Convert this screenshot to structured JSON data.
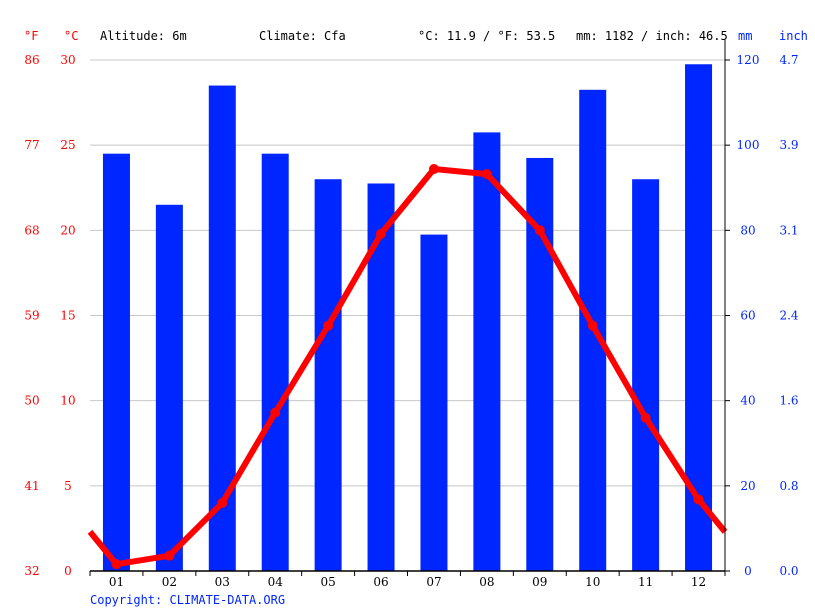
{
  "header": {
    "unit_f": "°F",
    "unit_c": "°C",
    "altitude": "Altitude: 6m",
    "climate": "Climate: Cfa",
    "avg_temp": "°C: 11.9 / °F: 53.5",
    "precip_total": "mm: 1182 / inch: 46.5",
    "unit_mm": "mm",
    "unit_inch": "inch"
  },
  "copyright": "Copyright: CLIMATE-DATA.ORG",
  "chart_data": {
    "type": "bar+line",
    "categories": [
      "01",
      "02",
      "03",
      "04",
      "05",
      "06",
      "07",
      "08",
      "09",
      "10",
      "11",
      "12"
    ],
    "series": [
      {
        "kind": "bar",
        "unit": "mm",
        "color": "#0026ff",
        "values": [
          98,
          86,
          114,
          98,
          92,
          91,
          79,
          103,
          97,
          113,
          92,
          119
        ]
      },
      {
        "kind": "line",
        "unit": "°C",
        "color": "#ff0000",
        "values": [
          0.4,
          0.9,
          4.0,
          9.3,
          14.4,
          19.8,
          23.6,
          23.3,
          20.0,
          14.4,
          9.0,
          4.2
        ]
      }
    ],
    "y_left_c": {
      "ticks": [
        "0",
        "5",
        "10",
        "15",
        "20",
        "25",
        "30"
      ],
      "range": [
        0,
        30
      ]
    },
    "y_left_f": {
      "ticks": [
        "32",
        "41",
        "50",
        "59",
        "68",
        "77",
        "86"
      ]
    },
    "y_right_mm": {
      "ticks": [
        "0",
        "20",
        "40",
        "60",
        "80",
        "100",
        "120"
      ],
      "range": [
        0,
        120
      ]
    },
    "y_right_inch": {
      "ticks": [
        "0.0",
        "0.8",
        "1.6",
        "2.4",
        "3.1",
        "3.9",
        "4.7"
      ]
    },
    "grid": true
  }
}
